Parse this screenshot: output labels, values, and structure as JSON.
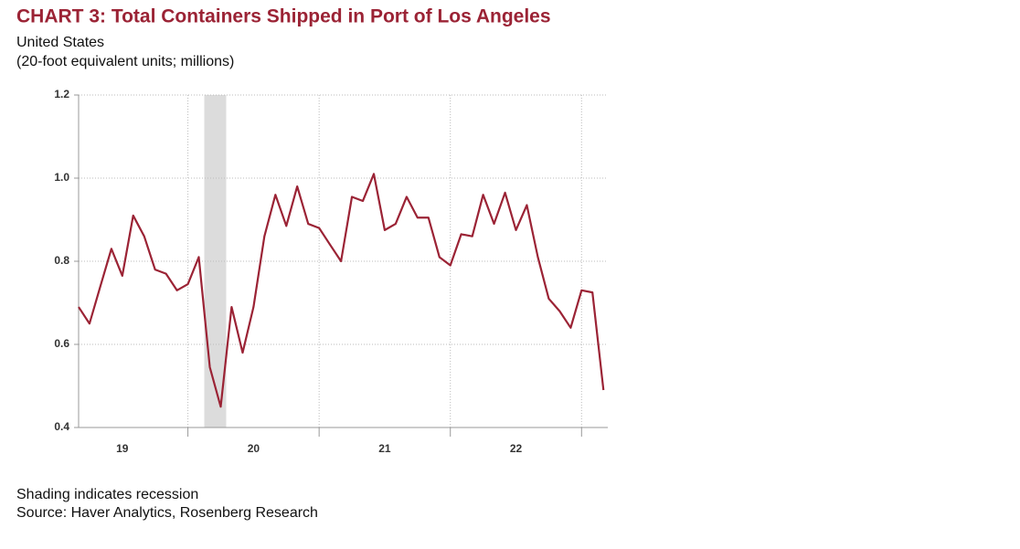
{
  "chart_data": {
    "type": "line",
    "title": "CHART 3: Total Containers Shipped in Port of Los Angeles",
    "subtitle": [
      "United States",
      "(20-foot equivalent units; millions)"
    ],
    "notes": [
      "Shading indicates recession",
      "Source: Haver Analytics, Rosenberg Research"
    ],
    "x": [
      2019.167,
      2019.25,
      2019.333,
      2019.417,
      2019.5,
      2019.583,
      2019.667,
      2019.75,
      2019.833,
      2019.917,
      2020.0,
      2020.083,
      2020.167,
      2020.25,
      2020.333,
      2020.417,
      2020.5,
      2020.583,
      2020.667,
      2020.75,
      2020.833,
      2020.917,
      2021.0,
      2021.083,
      2021.167,
      2021.25,
      2021.333,
      2021.417,
      2021.5,
      2021.583,
      2021.667,
      2021.75,
      2021.833,
      2021.917,
      2022.0,
      2022.083,
      2022.167,
      2022.25,
      2022.333,
      2022.417,
      2022.5,
      2022.583,
      2022.667,
      2022.75,
      2022.833,
      2022.917,
      2023.0,
      2023.083,
      2023.167
    ],
    "series": [
      {
        "color": "#9b2335",
        "values": [
          0.69,
          0.65,
          0.74,
          0.83,
          0.765,
          0.91,
          0.86,
          0.78,
          0.77,
          0.73,
          0.745,
          0.81,
          0.545,
          0.45,
          0.69,
          0.58,
          0.69,
          0.86,
          0.96,
          0.885,
          0.98,
          0.89,
          0.88,
          0.84,
          0.8,
          0.955,
          0.945,
          1.01,
          0.875,
          0.89,
          0.955,
          0.905,
          0.905,
          0.81,
          0.79,
          0.865,
          0.86,
          0.96,
          0.89,
          0.965,
          0.875,
          0.935,
          0.81,
          0.71,
          0.68,
          0.64,
          0.73,
          0.725,
          0.49
        ]
      }
    ],
    "xlim": [
      2019.167,
      2023.2
    ],
    "xticks": [
      {
        "value": 2019.5,
        "label": "19"
      },
      {
        "value": 2020.5,
        "label": "20"
      },
      {
        "value": 2021.5,
        "label": "21"
      },
      {
        "value": 2022.5,
        "label": "22"
      }
    ],
    "xgrid": [
      2020,
      2021,
      2022,
      2023
    ],
    "ylim": [
      0.4,
      1.2
    ],
    "yticks": [
      0.4,
      0.6,
      0.8,
      {
        "value": 1.0,
        "label": "1.0"
      },
      1.2
    ],
    "grid": true,
    "recession": [
      2020.125,
      2020.292
    ]
  }
}
